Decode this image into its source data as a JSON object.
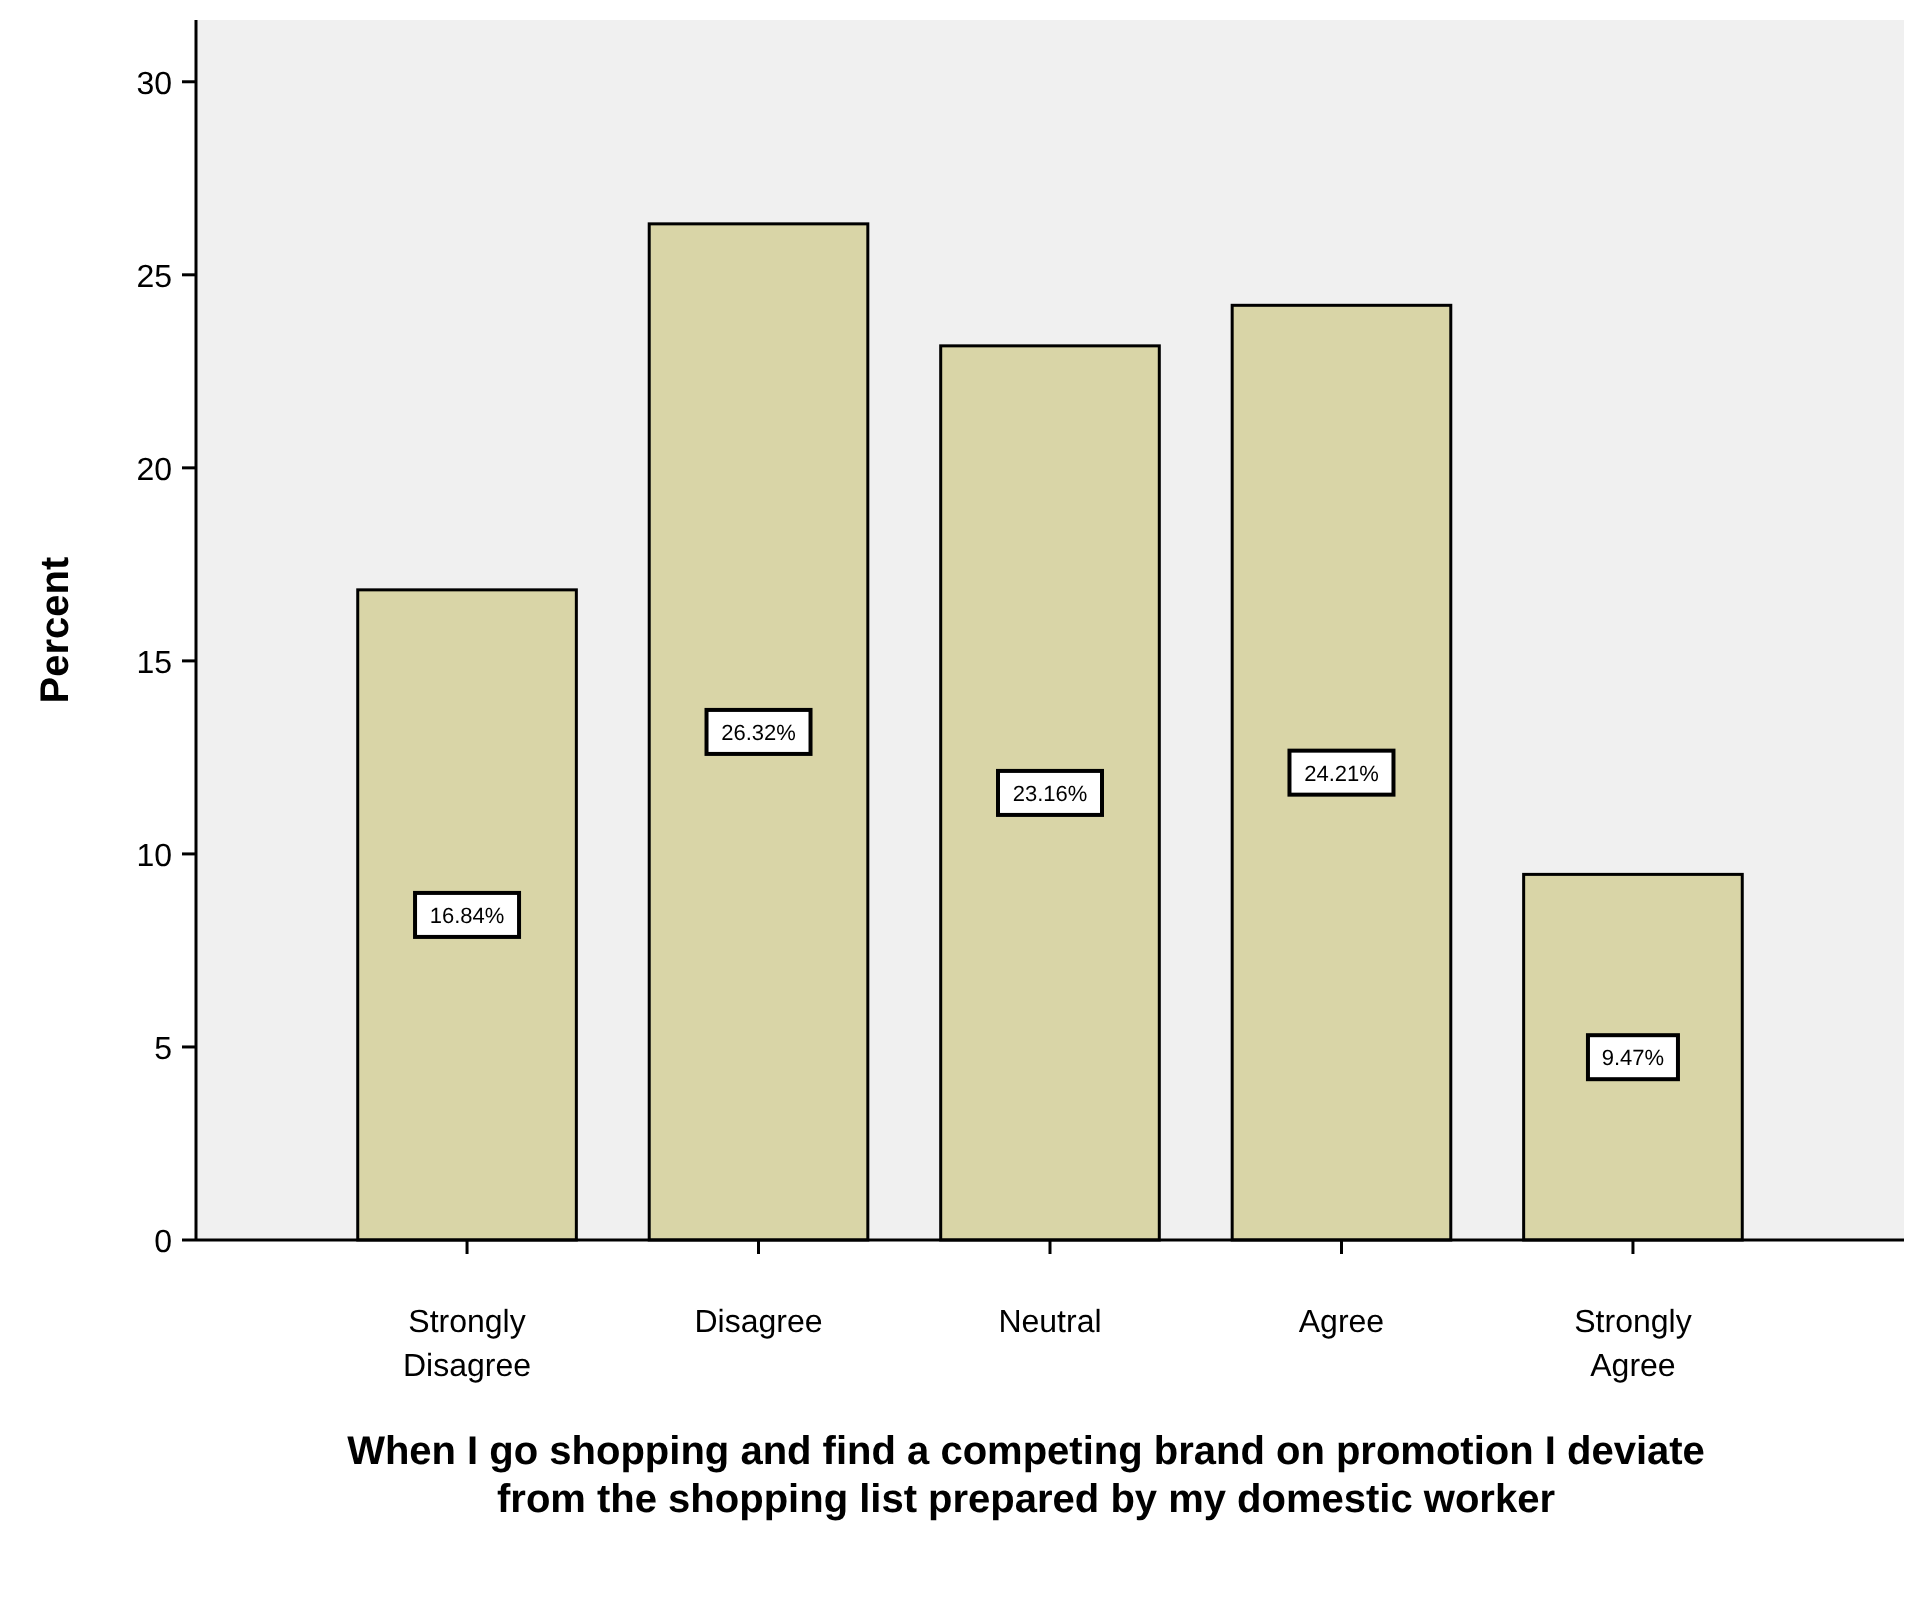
{
  "chart_data": {
    "type": "bar",
    "xlabel": "When I go shopping and find a competing brand on promotion I deviate from the shopping list prepared by my domestic worker",
    "ylabel": "Percent",
    "categories": [
      "Strongly Disagree",
      "Disagree",
      "Neutral",
      "Agree",
      "Strongly Agree"
    ],
    "values": [
      16.84,
      26.32,
      23.16,
      24.21,
      9.47
    ],
    "value_labels": [
      "16.84%",
      "26.32%",
      "23.16%",
      "24.21%",
      "9.47%"
    ],
    "color": "#d9d5a7",
    "ylim": [
      0,
      31.6
    ],
    "yticks": [
      0,
      5,
      10,
      15,
      20,
      25,
      30
    ],
    "grid": false
  }
}
